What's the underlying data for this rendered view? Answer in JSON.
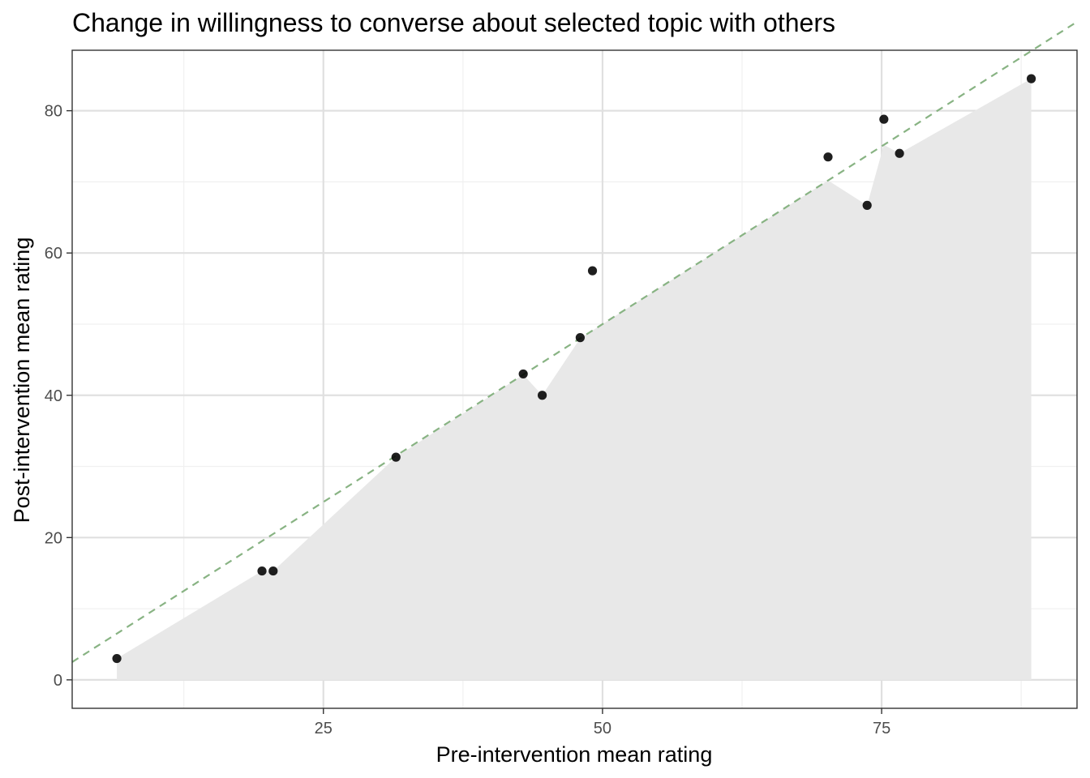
{
  "chart_data": {
    "type": "scatter",
    "title": "Change in willingness to converse about selected topic with others",
    "xlabel": "Pre-intervention mean rating",
    "ylabel": "Post-intervention mean rating",
    "xlim": [
      2.5,
      92.5
    ],
    "ylim": [
      -4,
      88.5
    ],
    "x_ticks": [
      25,
      50,
      75
    ],
    "y_ticks": [
      0,
      20,
      40,
      60,
      80
    ],
    "x_tick_labels": [
      "25",
      "50",
      "75"
    ],
    "y_tick_labels": [
      "0",
      "20",
      "40",
      "60",
      "80"
    ],
    "grid": true,
    "points": [
      {
        "x": 6.5,
        "y": 3.0
      },
      {
        "x": 19.5,
        "y": 15.3
      },
      {
        "x": 20.5,
        "y": 15.3
      },
      {
        "x": 31.5,
        "y": 31.3
      },
      {
        "x": 42.9,
        "y": 43.0
      },
      {
        "x": 44.6,
        "y": 40.0
      },
      {
        "x": 48.0,
        "y": 48.1
      },
      {
        "x": 49.1,
        "y": 57.5
      },
      {
        "x": 70.2,
        "y": 73.5
      },
      {
        "x": 73.7,
        "y": 66.7
      },
      {
        "x": 75.2,
        "y": 78.8
      },
      {
        "x": 76.6,
        "y": 74.0
      },
      {
        "x": 88.4,
        "y": 84.5
      }
    ],
    "reference_line": {
      "slope": 1,
      "intercept": 0,
      "style": "dashed"
    },
    "shaded_area": "region below min(x, y) for each point",
    "colors": {
      "points": "#000000",
      "reference_line": "#88b383",
      "shaded_area": "#e8e8e8",
      "grid_major": "#e0e0e0",
      "grid_minor": "#f0f0f0",
      "panel_border": "#333333"
    }
  }
}
